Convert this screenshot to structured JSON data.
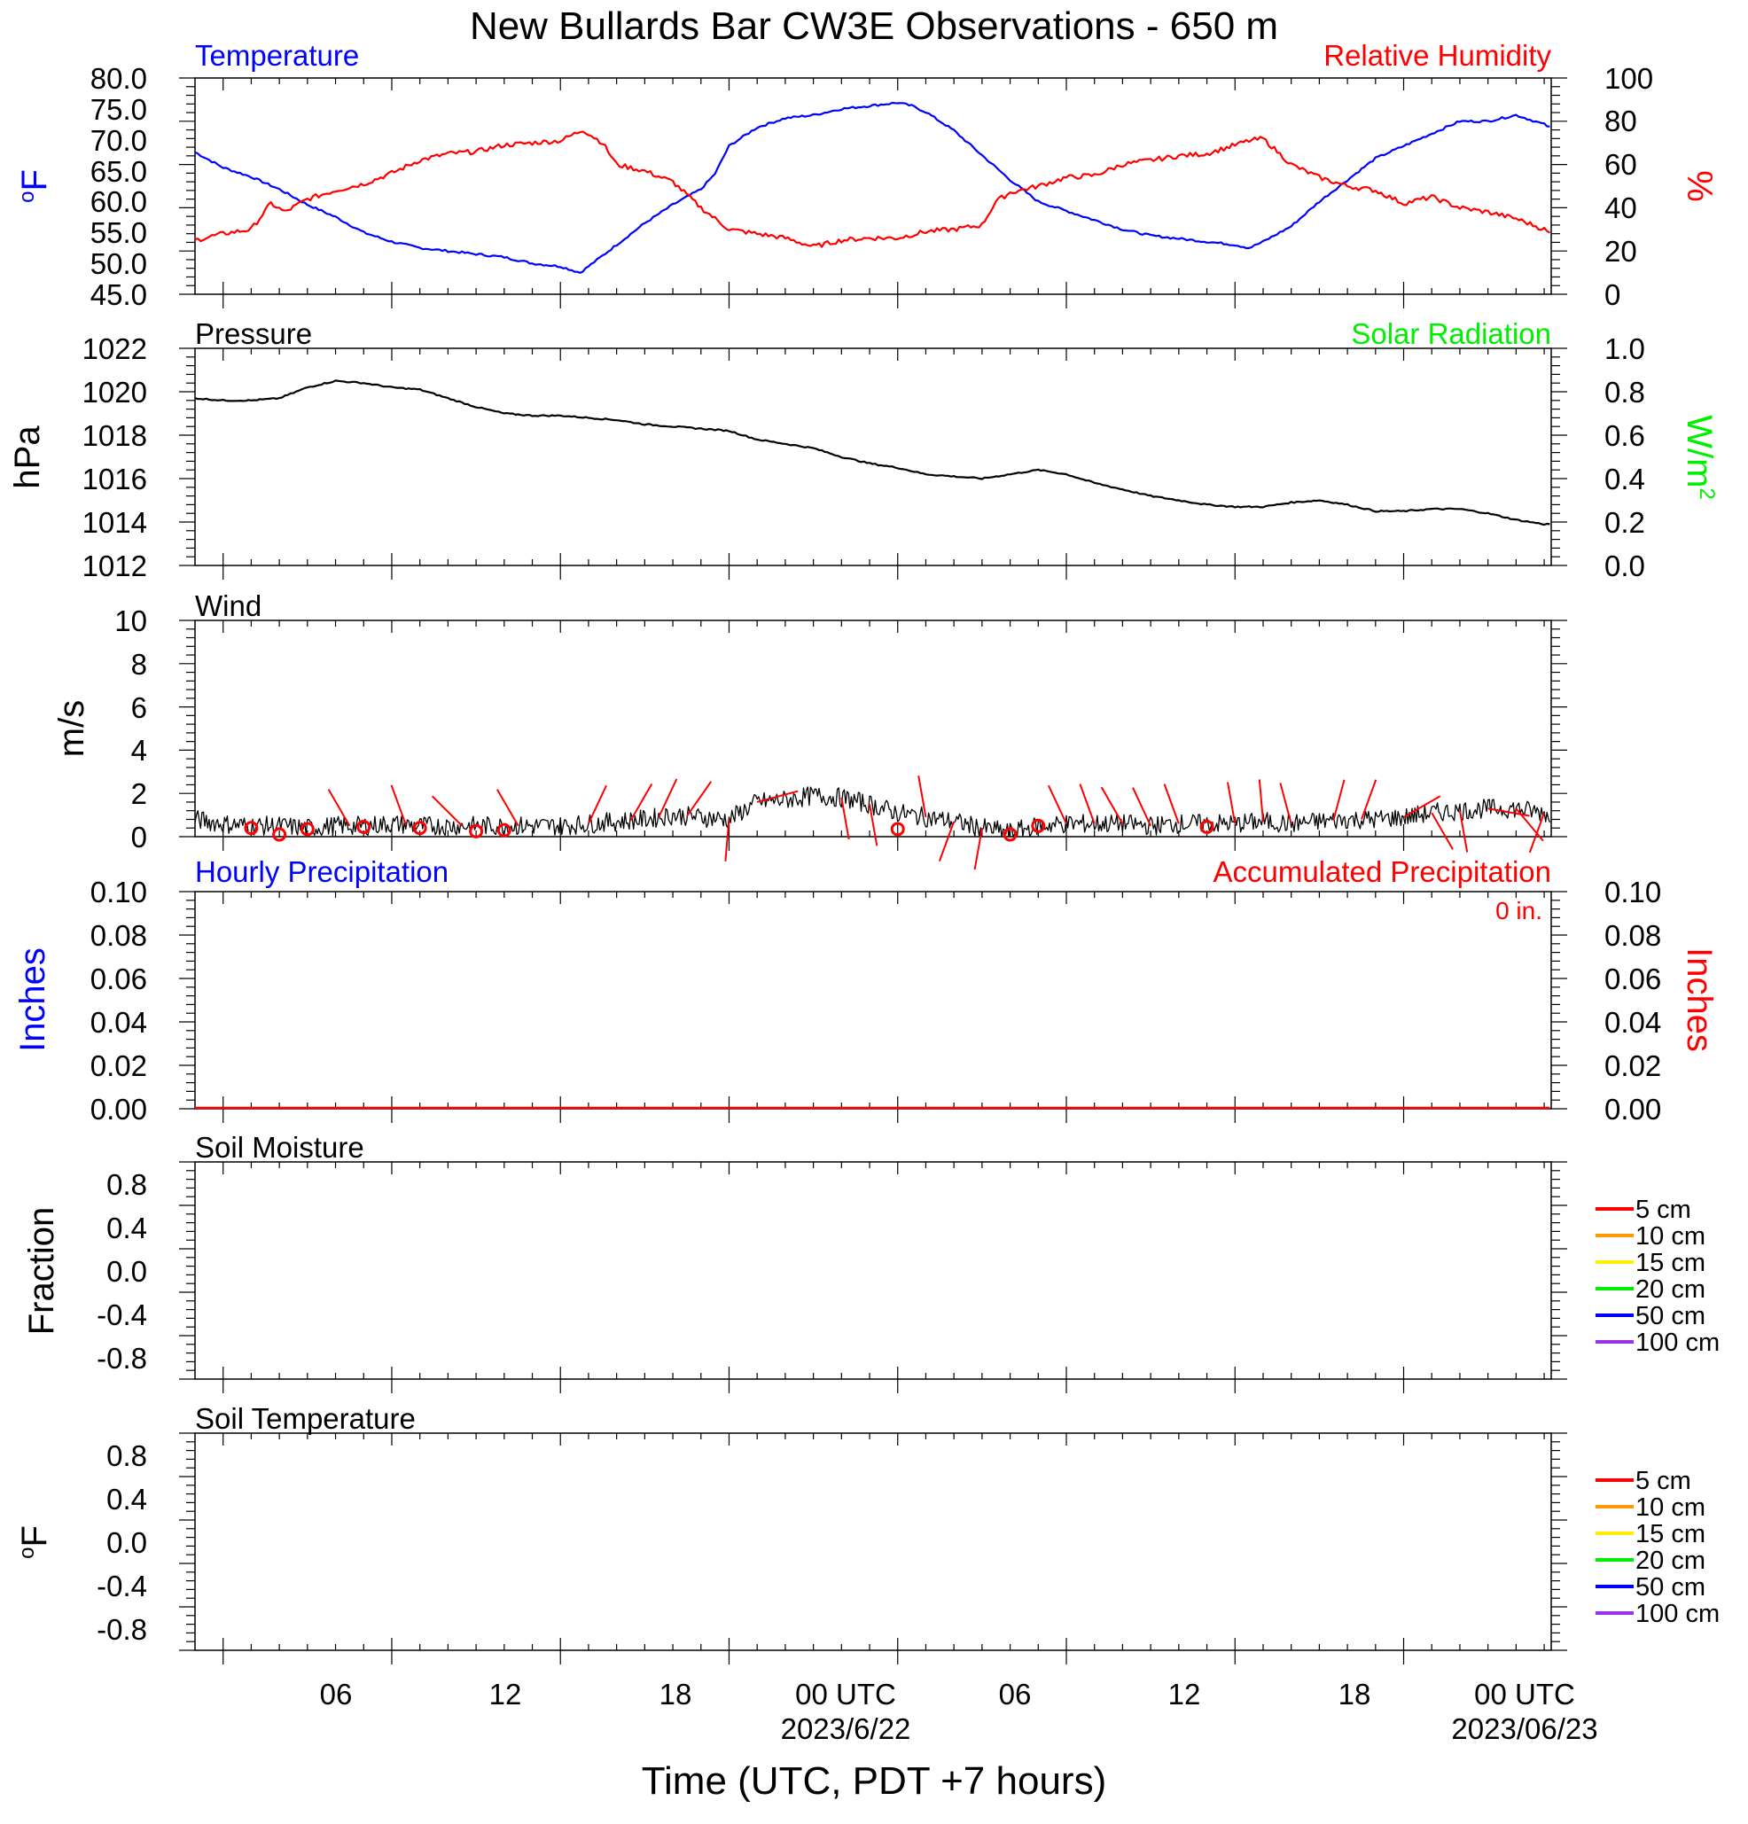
{
  "title": "New Bullards Bar CW3E Observations - 650 m",
  "xaxis": {
    "label": "Time (UTC, PDT +7 hours)",
    "range_hours": [
      -1,
      47.25
    ],
    "major_ticks": [
      {
        "hour": 6,
        "label": "06",
        "sublabel": ""
      },
      {
        "hour": 12,
        "label": "12",
        "sublabel": ""
      },
      {
        "hour": 18,
        "label": "18",
        "sublabel": ""
      },
      {
        "hour": 24,
        "label": "00 UTC",
        "sublabel": "2023/6/22"
      },
      {
        "hour": 30,
        "label": "06",
        "sublabel": ""
      },
      {
        "hour": 36,
        "label": "12",
        "sublabel": ""
      },
      {
        "hour": 42,
        "label": "18",
        "sublabel": ""
      },
      {
        "hour": 48,
        "label": "00 UTC",
        "sublabel": "2023/06/23"
      }
    ]
  },
  "colors": {
    "temperature": "#0000ff",
    "humidity": "#ff0000",
    "solar": "#00ee00",
    "pressure": "#000000",
    "wind": "#000000",
    "hourly_precip": "#0000ff",
    "accum_precip": "#ff0000"
  },
  "chart_data": [
    {
      "type": "line",
      "panel": "temperature_humidity",
      "left_title": "Temperature",
      "right_title": "Relative Humidity",
      "ylabel_left": "oF",
      "ylabel_right": "%",
      "ylim_left": [
        45,
        80
      ],
      "ylim_right": [
        0,
        100
      ],
      "yticks_left": [
        "80.0",
        "75.0",
        "70.0",
        "65.0",
        "60.0",
        "55.0",
        "50.0",
        "45.0"
      ],
      "yticks_right": [
        "100",
        "80",
        "60",
        "40",
        "20",
        "0"
      ],
      "series": [
        {
          "name": "Temperature",
          "axis": "left",
          "x": [
            -1,
            0,
            1,
            2,
            3,
            4,
            5,
            6,
            7,
            8,
            9,
            10,
            11,
            12,
            12.7,
            13,
            14,
            15,
            16,
            17,
            17.5,
            18,
            19,
            20,
            21,
            22,
            23,
            24,
            24.5,
            25,
            26,
            27,
            28,
            29,
            30,
            31,
            32,
            33,
            34,
            35,
            36,
            36.5,
            37,
            38,
            39,
            40,
            41,
            42,
            43,
            44,
            45,
            46,
            47,
            47.2
          ],
          "y": [
            68,
            65.5,
            64,
            62,
            59.5,
            57.5,
            55,
            53.5,
            52.5,
            52,
            51.5,
            51,
            50,
            49.5,
            48.5,
            49.5,
            53,
            56.5,
            59.5,
            62,
            64.5,
            69,
            72,
            73.5,
            74,
            75,
            75.5,
            76,
            75.5,
            74.5,
            71.5,
            67.5,
            63.5,
            60,
            58.5,
            57,
            55.5,
            54.5,
            54,
            53.5,
            53,
            52.5,
            53.5,
            56,
            60,
            63.5,
            67,
            69,
            71,
            73,
            73,
            74,
            72.5,
            72
          ]
        },
        {
          "name": "Relative Humidity",
          "axis": "right",
          "x": [
            -1,
            0,
            1,
            1.7,
            2.2,
            3,
            4,
            5,
            6,
            7,
            8,
            9,
            10,
            11,
            12,
            12.8,
            13.5,
            14,
            15,
            16,
            17,
            18,
            19,
            20,
            21,
            22,
            23,
            24,
            25,
            26,
            27,
            27.5,
            28,
            29,
            30,
            31,
            32,
            33,
            34,
            35,
            36,
            36.5,
            37,
            37.5,
            38,
            39,
            40,
            41,
            42,
            43,
            44,
            45,
            46,
            47,
            47.2
          ],
          "y": [
            25,
            28,
            30,
            42,
            38,
            44,
            48,
            51,
            56,
            62,
            65,
            66,
            69,
            70,
            71,
            76,
            70,
            60,
            57,
            52,
            40,
            30,
            28,
            26,
            22,
            25,
            26,
            26,
            29,
            30,
            32,
            43,
            47,
            50,
            54,
            55,
            60,
            62,
            64,
            65,
            69,
            71,
            72,
            66,
            60,
            54,
            50,
            48,
            42,
            45,
            40,
            38,
            35,
            30,
            28
          ]
        }
      ]
    },
    {
      "type": "line",
      "panel": "pressure_solar",
      "left_title": "Pressure",
      "right_title": "Solar Radiation",
      "ylabel_left": "hPa",
      "ylabel_right": "W/m2",
      "ylim_left": [
        1012,
        1022
      ],
      "ylim_right": [
        0,
        1
      ],
      "yticks_left": [
        "1022",
        "1020",
        "1018",
        "1016",
        "1014",
        "1012"
      ],
      "yticks_right": [
        "1.0",
        "0.8",
        "0.6",
        "0.4",
        "0.2",
        "0.0"
      ],
      "series": [
        {
          "name": "Pressure",
          "axis": "left",
          "x": [
            -1,
            0,
            1,
            2,
            3,
            4,
            5,
            6,
            7,
            8,
            9,
            10,
            11,
            12,
            13,
            14,
            15,
            16,
            17,
            18,
            19,
            20,
            21,
            22,
            23,
            24,
            25,
            26,
            27,
            28,
            29,
            30,
            31,
            32,
            33,
            34,
            35,
            36,
            37,
            38,
            39,
            40,
            41,
            42,
            43,
            44,
            45,
            46,
            47,
            47.2
          ],
          "y": [
            1019.7,
            1019.6,
            1019.6,
            1019.7,
            1020.2,
            1020.5,
            1020.4,
            1020.2,
            1020.1,
            1019.7,
            1019.3,
            1019.0,
            1018.9,
            1018.9,
            1018.8,
            1018.7,
            1018.5,
            1018.4,
            1018.3,
            1018.2,
            1017.8,
            1017.6,
            1017.4,
            1017.0,
            1016.7,
            1016.5,
            1016.2,
            1016.1,
            1016.0,
            1016.2,
            1016.4,
            1016.2,
            1015.8,
            1015.5,
            1015.2,
            1015.0,
            1014.8,
            1014.7,
            1014.7,
            1014.9,
            1015.0,
            1014.8,
            1014.5,
            1014.5,
            1014.6,
            1014.6,
            1014.4,
            1014.1,
            1013.9,
            1013.9
          ]
        }
      ]
    },
    {
      "type": "line",
      "panel": "wind",
      "left_title": "Wind",
      "ylabel_left": "m/s",
      "ylim_left": [
        0,
        10
      ],
      "yticks_left": [
        "10",
        "8",
        "6",
        "4",
        "2",
        "0"
      ],
      "series": [
        {
          "name": "Wind",
          "x": [
            -1,
            0,
            1,
            2,
            3,
            4,
            5,
            6,
            7,
            8,
            9,
            10,
            11,
            12,
            13,
            14,
            15,
            16,
            17,
            18,
            19,
            20,
            21,
            22,
            23,
            24,
            25,
            26,
            27,
            28,
            29,
            30,
            31,
            32,
            33,
            34,
            35,
            36,
            37,
            38,
            39,
            40,
            41,
            42,
            43,
            44,
            45,
            46,
            47,
            47.2
          ],
          "y": [
            0.8,
            0.6,
            0.5,
            0.5,
            0.4,
            0.5,
            0.5,
            0.6,
            0.5,
            0.5,
            0.5,
            0.5,
            0.5,
            0.5,
            0.6,
            0.7,
            0.8,
            1.0,
            0.9,
            0.8,
            1.6,
            1.7,
            1.9,
            1.8,
            1.5,
            1.1,
            0.9,
            0.7,
            0.4,
            0.2,
            0.5,
            0.6,
            0.6,
            0.6,
            0.5,
            0.6,
            0.6,
            0.6,
            0.7,
            0.6,
            0.7,
            0.8,
            0.8,
            0.9,
            1.1,
            1.2,
            1.3,
            1.3,
            1.1,
            1.0
          ]
        },
        {
          "name": "Calm",
          "style": "circles",
          "x": [
            1,
            2,
            3,
            5,
            7,
            9,
            10,
            24,
            28,
            29,
            35
          ],
          "y": [
            0.4,
            0.1,
            0.35,
            0.45,
            0.4,
            0.25,
            0.3,
            0.35,
            0.1,
            0.5,
            0.45
          ]
        },
        {
          "name": "Direction",
          "style": "sticks",
          "stick_length": 1.95,
          "x": [
            4.5,
            6.5,
            8.5,
            10.5,
            13,
            14.5,
            15.5,
            16.5,
            18,
            19,
            22,
            23,
            25,
            26,
            27,
            30,
            31,
            32,
            33,
            34,
            36,
            37,
            38,
            39.5,
            40.5,
            42,
            43,
            44,
            45,
            46,
            47
          ],
          "angle": [
            -30,
            -20,
            -45,
            -30,
            25,
            30,
            25,
            35,
            185,
            75,
            170,
            170,
            -10,
            200,
            190,
            -25,
            -20,
            -30,
            -25,
            -20,
            -10,
            -5,
            -15,
            15,
            20,
            60,
            150,
            170,
            100,
            140,
            200
          ]
        }
      ]
    },
    {
      "type": "line",
      "panel": "precipitation",
      "left_title": "Hourly Precipitation",
      "right_title": "Accumulated Precipitation",
      "annotation": "0 in.",
      "ylabel_left": "Inches",
      "ylabel_right": "Inches",
      "ylim_left": [
        0,
        0.1
      ],
      "ylim_right": [
        0,
        0.1
      ],
      "yticks_left": [
        "0.10",
        "0.08",
        "0.06",
        "0.04",
        "0.02",
        "0.00"
      ],
      "yticks_right": [
        "0.10",
        "0.08",
        "0.06",
        "0.04",
        "0.02",
        "0.00"
      ],
      "series": [
        {
          "name": "Accumulated Precipitation",
          "axis": "right",
          "x": [
            -1,
            47.2
          ],
          "y": [
            0,
            0
          ]
        }
      ]
    },
    {
      "type": "line",
      "panel": "soil_moisture",
      "left_title": "Soil Moisture",
      "ylabel_left": "Fraction",
      "ylim_left": [
        -1,
        1
      ],
      "yticks_left": [
        "0.8",
        "0.4",
        "0.0",
        "-0.4",
        "-0.8"
      ],
      "legend": [
        {
          "label": "5 cm",
          "color": "#ff0000"
        },
        {
          "label": "10 cm",
          "color": "#ff9900"
        },
        {
          "label": "15 cm",
          "color": "#ffee00"
        },
        {
          "label": "20 cm",
          "color": "#00ee00"
        },
        {
          "label": "50 cm",
          "color": "#0000ff"
        },
        {
          "label": "100 cm",
          "color": "#9933ee"
        }
      ],
      "series": []
    },
    {
      "type": "line",
      "panel": "soil_temperature",
      "left_title": "Soil Temperature",
      "ylabel_left": "oF",
      "ylim_left": [
        -1,
        1
      ],
      "yticks_left": [
        "0.8",
        "0.4",
        "0.0",
        "-0.4",
        "-0.8"
      ],
      "legend": [
        {
          "label": "5 cm",
          "color": "#ff0000"
        },
        {
          "label": "10 cm",
          "color": "#ff9900"
        },
        {
          "label": "15 cm",
          "color": "#ffee00"
        },
        {
          "label": "20 cm",
          "color": "#00ee00"
        },
        {
          "label": "50 cm",
          "color": "#0000ff"
        },
        {
          "label": "100 cm",
          "color": "#9933ee"
        }
      ],
      "series": []
    }
  ]
}
